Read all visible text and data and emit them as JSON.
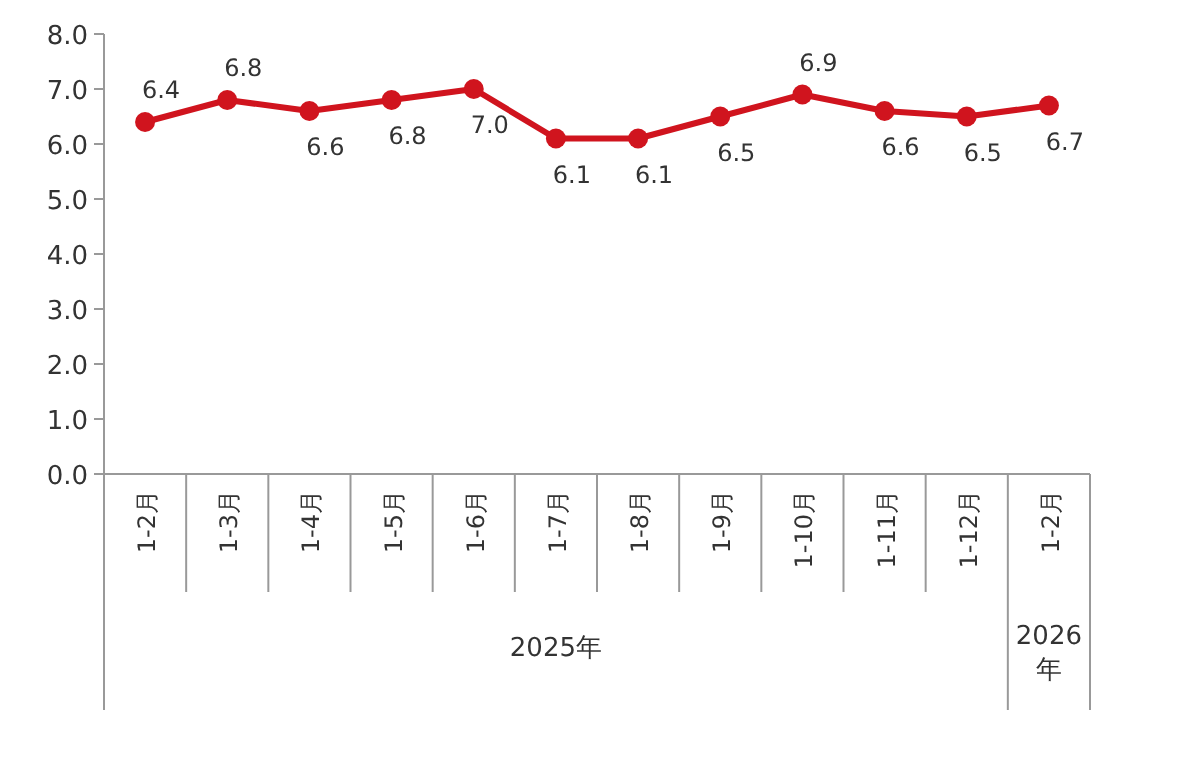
{
  "chart_data": {
    "type": "line",
    "categories": [
      "1-2月",
      "1-3月",
      "1-4月",
      "1-5月",
      "1-6月",
      "1-7月",
      "1-8月",
      "1-9月",
      "1-10月",
      "1-11月",
      "1-12月",
      "1-2月"
    ],
    "series": [
      {
        "color": "#d0141e",
        "values": [
          6.4,
          6.8,
          6.6,
          6.8,
          7.0,
          6.1,
          6.1,
          6.5,
          6.9,
          6.6,
          6.5,
          6.7
        ],
        "value_labels": [
          "6.4",
          "6.8",
          "6.6",
          "6.8",
          "7.0",
          "6.1",
          "6.1",
          "6.5",
          "6.9",
          "6.6",
          "6.5",
          "6.7"
        ]
      }
    ],
    "ylim": [
      0,
      8
    ],
    "yticks": [
      {
        "value": 0,
        "label": "0.0"
      },
      {
        "value": 1,
        "label": "1.0"
      },
      {
        "value": 2,
        "label": "2.0"
      },
      {
        "value": 3,
        "label": "3.0"
      },
      {
        "value": 4,
        "label": "4.0"
      },
      {
        "value": 5,
        "label": "5.0"
      },
      {
        "value": 6,
        "label": "6.0"
      },
      {
        "value": 7,
        "label": "7.0"
      },
      {
        "value": 8,
        "label": "8.0"
      }
    ],
    "annotations": [
      "2025年",
      "2026年"
    ],
    "marker": "circle",
    "line_style": "solid",
    "grid": false
  }
}
